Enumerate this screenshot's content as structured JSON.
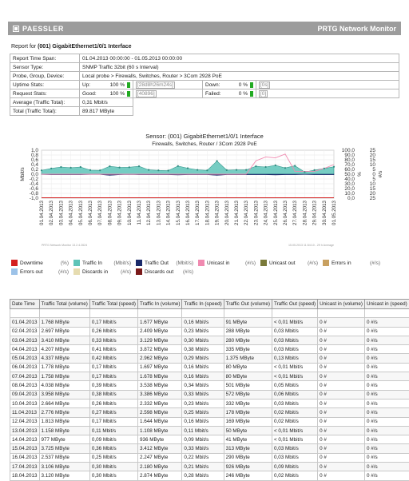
{
  "header": {
    "brand": "PAESSLER",
    "product": "PRTG Network Monitor"
  },
  "report_for": {
    "prefix": "Report for",
    "name": "(001) GigabitEthernet1/0/1 Interface"
  },
  "info": {
    "time_span_label": "Report Time Span:",
    "time_span": "01.04.2013 00:00:00 - 01.05.2013 00:00:00",
    "sensor_type_label": "Sensor Type:",
    "sensor_type": "SNMP Traffic 32bit (60 s Interval)",
    "probe_label": "Probe, Group, Device:",
    "probe": "Local probe > Firewalls, Switches, Router > 3Com 2928 PoE",
    "uptime_label": "Uptime Stats:",
    "up_label": "Up:",
    "up_pct": "100 %",
    "up_time": "[28d8h26m24s]",
    "down_label": "Down:",
    "down_pct": "0 %",
    "down_time": "[0s]",
    "request_label": "Request Stats:",
    "good_label": "Good:",
    "good_pct": "100 %",
    "good_count": "[40896]",
    "failed_label": "Failed:",
    "failed_pct": "0 %",
    "failed_count": "[0]",
    "avg_label": "Average (Traffic Total):",
    "avg": "0,31 Mbit/s",
    "total_label": "Total (Traffic Total):",
    "total": "89.817 MByte"
  },
  "chart_data": {
    "type": "area",
    "title_line1": "Sensor: (001) GigabitEthernet1/0/1 Interface",
    "title_line2": "Firewalls, Switches, Router / 3Com 2928 PoE",
    "ylabel_left": "Mbit/s",
    "ylabel_right_1": "%",
    "ylabel_right_2": "#/s",
    "left_ticks": [
      "1,0",
      "0,8",
      "0,6",
      "0,4",
      "0,2",
      "0,0",
      "-0,2",
      "-0,4",
      "-0,6",
      "-0,8",
      "-1,0"
    ],
    "right_ticks_pct": [
      "100,0",
      "90,0",
      "80,0",
      "70,0",
      "60,0",
      "50,0",
      "40,0",
      "30,0",
      "20,0",
      "10,0",
      "0,0"
    ],
    "right_ticks_num": [
      "25",
      "20",
      "15",
      "10",
      "5",
      "0",
      "5",
      "10",
      "15",
      "20",
      "25"
    ],
    "categories": [
      "01.04.2013",
      "02.04.2013",
      "03.04.2013",
      "04.04.2013",
      "05.04.2013",
      "06.04.2013",
      "07.04.2013",
      "08.04.2013",
      "09.04.2013",
      "10.04.2013",
      "11.04.2013",
      "12.04.2013",
      "13.04.2013",
      "14.04.2013",
      "15.04.2013",
      "16.04.2013",
      "17.04.2013",
      "18.04.2013",
      "19.04.2013",
      "20.04.2013",
      "21.04.2013",
      "22.04.2013",
      "23.04.2013",
      "24.04.2013",
      "25.04.2013",
      "26.04.2013",
      "27.04.2013",
      "28.04.2013",
      "29.04.2013",
      "30.04.2013",
      "01.05.2013"
    ],
    "series": [
      {
        "name": "Traffic In",
        "values": [
          0.16,
          0.24,
          0.3,
          0.27,
          0.3,
          0.17,
          0.16,
          0.33,
          0.28,
          0.29,
          0.33,
          0.18,
          0.16,
          0.15,
          0.34,
          0.25,
          0.18,
          0.16,
          0.55,
          0.17,
          0.18,
          0.18,
          0.33,
          0.3,
          0.37,
          0.26,
          0.35,
          0.09,
          0.17,
          0.24,
          0.31
        ]
      },
      {
        "name": "Traffic Out",
        "values": [
          0.01,
          0.02,
          0.02,
          0.02,
          0.02,
          0.01,
          0.01,
          0.05,
          0.02,
          0.01,
          0.02,
          0.02,
          0.02,
          0.02,
          0.03,
          0.02,
          0.02,
          0.02,
          0.05,
          0.02,
          0.02,
          0.02,
          0.02,
          0.02,
          0.03,
          0.02,
          0.02,
          0.01,
          0.02,
          0.02,
          0.02
        ]
      },
      {
        "name": "Unicast in",
        "values": [
          0,
          0,
          0,
          0,
          0,
          0,
          0,
          0,
          0,
          0,
          0,
          0,
          0,
          0,
          0,
          0,
          0,
          0,
          0,
          0,
          0,
          0,
          14,
          18,
          17,
          21,
          3,
          3,
          3,
          6,
          10
        ]
      }
    ],
    "footer_left": "PRTG Network Monitor 13.2.4.2624",
    "footer_right": "15.05.2013 11:54:10 - 29 h Average"
  },
  "legend": [
    {
      "label": "Downtime",
      "unit": "(%)",
      "color": "#d42020"
    },
    {
      "label": "Traffic In",
      "unit": "(Mbit/s)",
      "color": "#5ec4b8"
    },
    {
      "label": "Traffic Out",
      "unit": "(Mbit/s)",
      "color": "#1a2a6a"
    },
    {
      "label": "Unicast in",
      "unit": "(#/s)",
      "color": "#f08ab0"
    },
    {
      "label": "Unicast out",
      "unit": "(#/s)",
      "color": "#7a7a3a"
    },
    {
      "label": "Errors in",
      "unit": "(#/s)",
      "color": "#c8a060"
    },
    {
      "label": "Errors out",
      "unit": "(#/s)",
      "color": "#9cc2e8"
    },
    {
      "label": "Discards in",
      "unit": "(#/s)",
      "color": "#e6dcb0"
    },
    {
      "label": "Discards out",
      "unit": "(#/s)",
      "color": "#7a1a1a"
    }
  ],
  "table": {
    "headers": [
      "Date Time",
      "Traffic Total (volume)",
      "Traffic Total (speed)",
      "Traffic In (volume)",
      "Traffic In (speed)",
      "Traffic Out (volume)",
      "Traffic Out (speed)",
      "Unicast in (volume)",
      "Unicast in (speed)"
    ],
    "rows": [
      [
        "01.04.2013",
        "1.768 MByte",
        "0,17 Mbit/s",
        "1.677 MByte",
        "0,16 Mbit/s",
        "91 MByte",
        "< 0,01 Mbit/s",
        "0 #",
        "0 #/s"
      ],
      [
        "02.04.2013",
        "2.697 MByte",
        "0,26 Mbit/s",
        "2.409 MByte",
        "0,23 Mbit/s",
        "288 MByte",
        "0,03 Mbit/s",
        "0 #",
        "0 #/s"
      ],
      [
        "03.04.2013",
        "3.410 MByte",
        "0,33 Mbit/s",
        "3.129 MByte",
        "0,30 Mbit/s",
        "280 MByte",
        "0,03 Mbit/s",
        "0 #",
        "0 #/s"
      ],
      [
        "04.04.2013",
        "4.207 MByte",
        "0,41 Mbit/s",
        "3.872 MByte",
        "0,38 Mbit/s",
        "335 MByte",
        "0,03 Mbit/s",
        "0 #",
        "0 #/s"
      ],
      [
        "05.04.2013",
        "4.337 MByte",
        "0,42 Mbit/s",
        "2.962 MByte",
        "0,29 Mbit/s",
        "1.375 MByte",
        "0,13 Mbit/s",
        "0 #",
        "0 #/s"
      ],
      [
        "06.04.2013",
        "1.778 MByte",
        "0,17 Mbit/s",
        "1.697 MByte",
        "0,16 Mbit/s",
        "80 MByte",
        "< 0,01 Mbit/s",
        "0 #",
        "0 #/s"
      ],
      [
        "07.04.2013",
        "1.758 MByte",
        "0,17 Mbit/s",
        "1.678 MByte",
        "0,16 Mbit/s",
        "80 MByte",
        "< 0,01 Mbit/s",
        "0 #",
        "0 #/s"
      ],
      [
        "08.04.2013",
        "4.038 MByte",
        "0,39 Mbit/s",
        "3.538 MByte",
        "0,34 Mbit/s",
        "501 MByte",
        "0,05 Mbit/s",
        "0 #",
        "0 #/s"
      ],
      [
        "09.04.2013",
        "3.958 MByte",
        "0,38 Mbit/s",
        "3.386 MByte",
        "0,33 Mbit/s",
        "572 MByte",
        "0,06 Mbit/s",
        "0 #",
        "0 #/s"
      ],
      [
        "10.04.2013",
        "2.664 MByte",
        "0,26 Mbit/s",
        "2.332 MByte",
        "0,23 Mbit/s",
        "332 MByte",
        "0,03 Mbit/s",
        "0 #",
        "0 #/s"
      ],
      [
        "11.04.2013",
        "2.776 MByte",
        "0,27 Mbit/s",
        "2.598 MByte",
        "0,25 Mbit/s",
        "178 MByte",
        "0,02 Mbit/s",
        "0 #",
        "0 #/s"
      ],
      [
        "12.04.2013",
        "1.813 MByte",
        "0,17 Mbit/s",
        "1.644 MByte",
        "0,16 Mbit/s",
        "169 MByte",
        "0,02 Mbit/s",
        "0 #",
        "0 #/s"
      ],
      [
        "13.04.2013",
        "1.158 MByte",
        "0,11 Mbit/s",
        "1.108 MByte",
        "0,11 Mbit/s",
        "50 MByte",
        "< 0,01 Mbit/s",
        "0 #",
        "0 #/s"
      ],
      [
        "14.04.2013",
        "977 MByte",
        "0,09 Mbit/s",
        "936 MByte",
        "0,09 Mbit/s",
        "41 MByte",
        "< 0,01 Mbit/s",
        "0 #",
        "0 #/s"
      ],
      [
        "15.04.2013",
        "3.725 MByte",
        "0,36 Mbit/s",
        "3.412 MByte",
        "0,33 Mbit/s",
        "313 MByte",
        "0,03 Mbit/s",
        "0 #",
        "0 #/s"
      ],
      [
        "16.04.2013",
        "2.537 MByte",
        "0,25 Mbit/s",
        "2.247 MByte",
        "0,22 Mbit/s",
        "290 MByte",
        "0,03 Mbit/s",
        "0 #",
        "0 #/s"
      ],
      [
        "17.04.2013",
        "3.106 MByte",
        "0,30 Mbit/s",
        "2.180 MByte",
        "0,21 Mbit/s",
        "926 MByte",
        "0,09 Mbit/s",
        "0 #",
        "0 #/s"
      ],
      [
        "18.04.2013",
        "3.120 MByte",
        "0,30 Mbit/s",
        "2.874 MByte",
        "0,28 Mbit/s",
        "246 MByte",
        "0,02 Mbit/s",
        "0 #",
        "0 #/s"
      ]
    ]
  }
}
